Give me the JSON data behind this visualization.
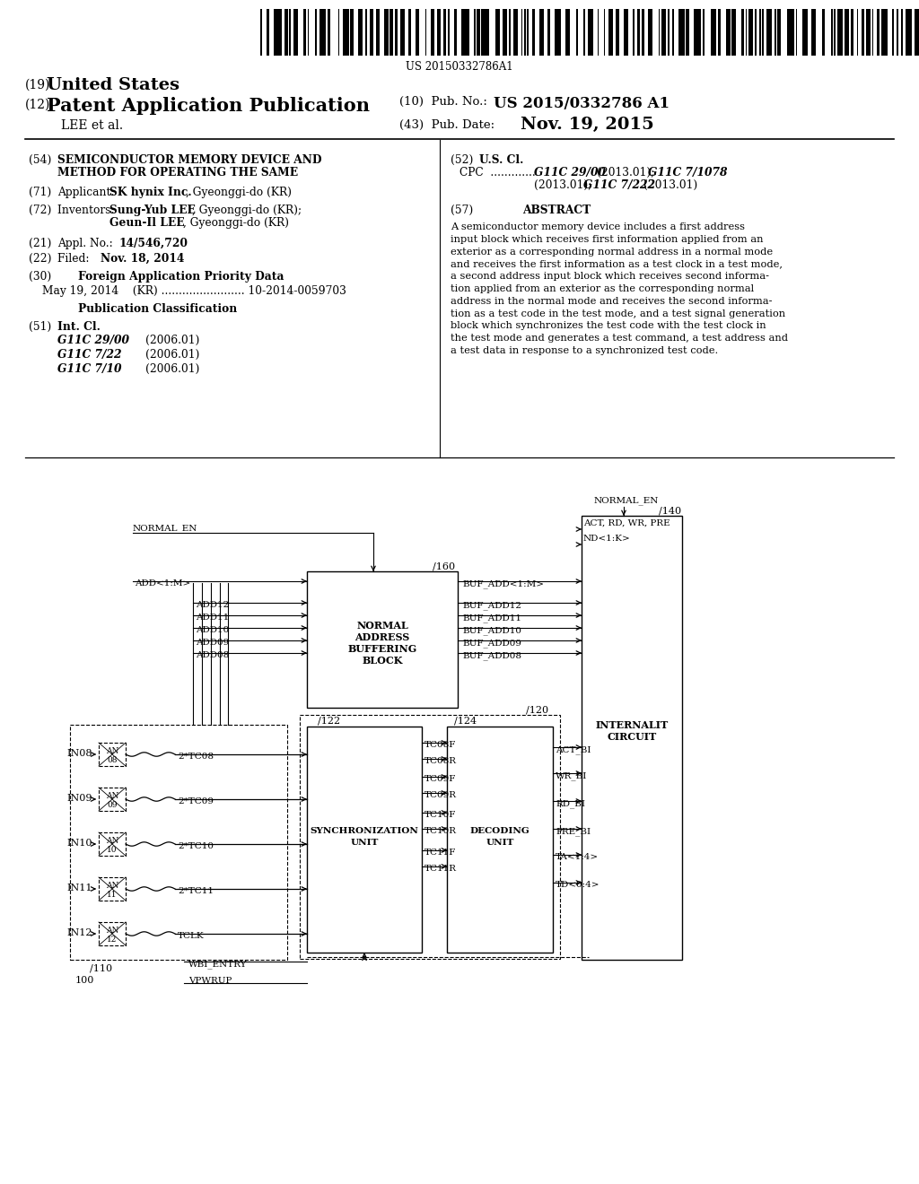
{
  "bg": "#ffffff",
  "barcode_text": "US 20150332786A1",
  "abs_lines": [
    "A semiconductor memory device includes a first address",
    "input block which receives first information applied from an",
    "exterior as a corresponding normal address in a normal mode",
    "and receives the first information as a test clock in a test mode,",
    "a second address input block which receives second informa-",
    "tion applied from an exterior as the corresponding normal",
    "address in the normal mode and receives the second informa-",
    "tion as a test code in the test mode, and a test signal generation",
    "block which synchronizes the test code with the test clock in",
    "the test mode and generates a test command, a test address and",
    "a test data in response to a synchronized test code."
  ],
  "int_cl": [
    [
      "G11C 29/00",
      "(2006.01)"
    ],
    [
      "G11C 7/22",
      "(2006.01)"
    ],
    [
      "G11C 7/10",
      "(2006.01)"
    ]
  ]
}
